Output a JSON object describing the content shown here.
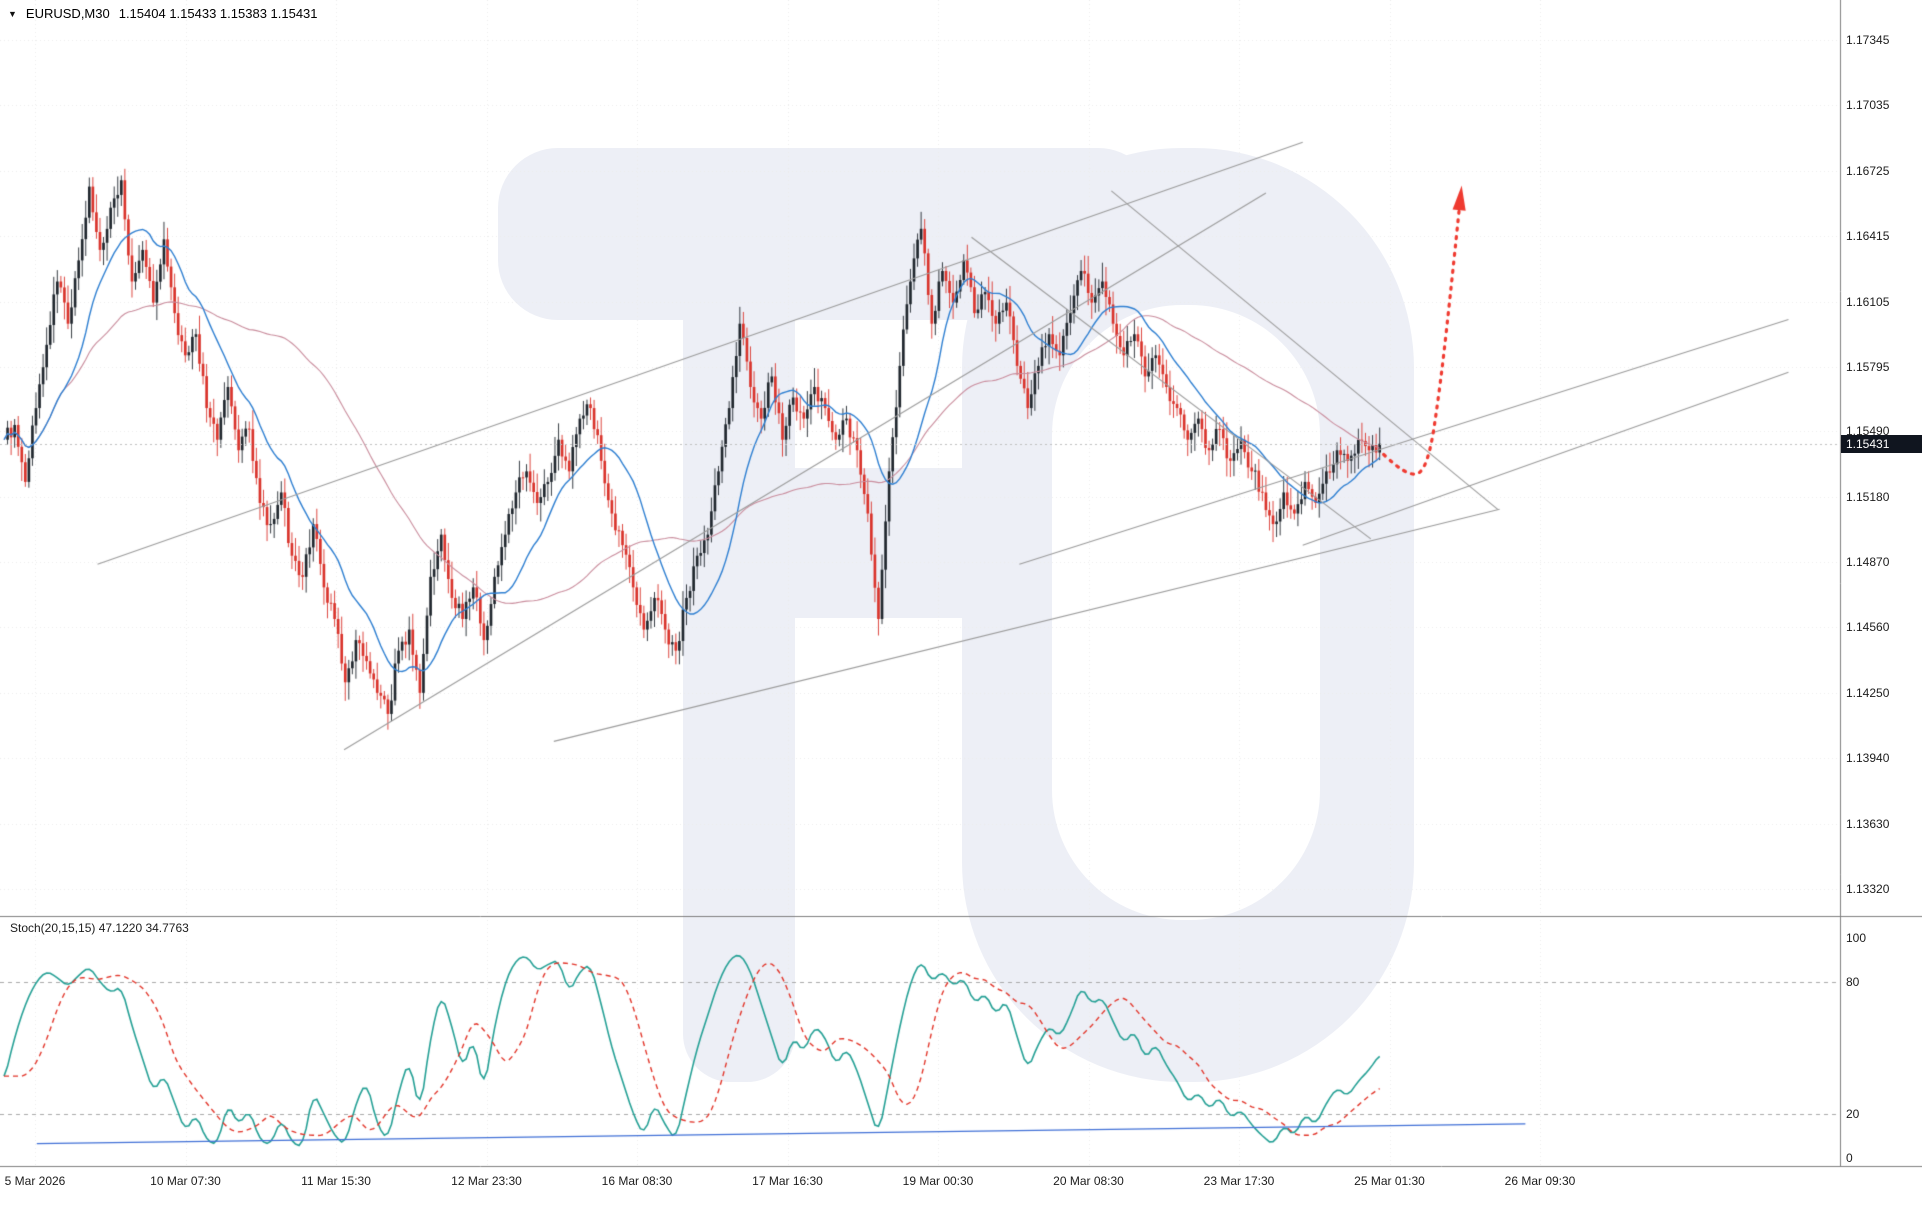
{
  "header": {
    "symbol": "EURUSD,M30",
    "ohlc": "1.15404 1.15433 1.15383 1.15431"
  },
  "current_price": {
    "value": "1.15431"
  },
  "price_axis": {
    "labels": [
      "1.17345",
      "1.17035",
      "1.16725",
      "1.16415",
      "1.16105",
      "1.15795",
      "1.15490",
      "1.15180",
      "1.14870",
      "1.14560",
      "1.14250",
      "1.13940",
      "1.13630",
      "1.13320"
    ]
  },
  "time_axis": {
    "labels": [
      "5 Mar 2026",
      "10 Mar 07:30",
      "11 Mar 15:30",
      "12 Mar 23:30",
      "16 Mar 08:30",
      "17 Mar 16:30",
      "19 Mar 00:30",
      "20 Mar 08:30",
      "23 Mar 17:30",
      "25 Mar 01:30",
      "26 Mar 09:30"
    ]
  },
  "stoch_panel": {
    "label": "Stoch(20,15,15)",
    "values": "47.1220 34.7763",
    "axis_labels": [
      "100",
      "80",
      "20",
      "0"
    ]
  },
  "colors": {
    "background": "#ffffff",
    "grid": "#ebebeb",
    "axis_text": "#1c1c1c",
    "badge_bg": "#10151f",
    "watermark": "#edeff6",
    "pane_border": "#7e7e7e"
  },
  "chart_data": [
    {
      "type": "candlestick",
      "title": "EURUSD,M30",
      "ylabel": "price",
      "ylim": [
        1.1332,
        1.17345
      ],
      "x_span_frac": 0.752,
      "wick_amp": 0.0007,
      "up_color": "#1f262d",
      "down_color": "#d9332b",
      "closes": [
        1.1545,
        1.1552,
        1.1525,
        1.156,
        1.159,
        1.162,
        1.16,
        1.163,
        1.1665,
        1.1635,
        1.1655,
        1.1668,
        1.162,
        1.1635,
        1.161,
        1.164,
        1.1605,
        1.1585,
        1.1595,
        1.156,
        1.1545,
        1.157,
        1.154,
        1.155,
        1.1515,
        1.1505,
        1.152,
        1.149,
        1.148,
        1.1505,
        1.1475,
        1.146,
        1.143,
        1.145,
        1.144,
        1.1425,
        1.1415,
        1.1445,
        1.1455,
        1.1425,
        1.148,
        1.15,
        1.147,
        1.146,
        1.1475,
        1.145,
        1.148,
        1.15,
        1.152,
        1.153,
        1.1515,
        1.1525,
        1.1545,
        1.153,
        1.1555,
        1.156,
        1.1535,
        1.151,
        1.1495,
        1.1475,
        1.1455,
        1.147,
        1.1455,
        1.1445,
        1.147,
        1.149,
        1.15,
        1.153,
        1.156,
        1.16,
        1.157,
        1.1555,
        1.1575,
        1.1545,
        1.1565,
        1.1555,
        1.157,
        1.156,
        1.1545,
        1.1555,
        1.154,
        1.151,
        1.146,
        1.153,
        1.158,
        1.162,
        1.1645,
        1.16,
        1.1625,
        1.161,
        1.163,
        1.1605,
        1.1615,
        1.16,
        1.161,
        1.158,
        1.156,
        1.158,
        1.1595,
        1.1585,
        1.1605,
        1.1625,
        1.161,
        1.162,
        1.16,
        1.1585,
        1.1595,
        1.1575,
        1.1585,
        1.157,
        1.156,
        1.1545,
        1.1555,
        1.154,
        1.155,
        1.1535,
        1.1545,
        1.153,
        1.152,
        1.1505,
        1.152,
        1.151,
        1.1525,
        1.1515,
        1.153,
        1.154,
        1.1535,
        1.1545,
        1.154,
        1.15431
      ],
      "ma_fast": {
        "period": 18,
        "color": "#2e7fd1"
      },
      "ma_slow": {
        "period": 70,
        "color": "#c98c9c"
      },
      "trendline_color": "#9b9b9b",
      "trendlines": [
        {
          "x1": 0.053,
          "p1": 1.1486,
          "x2": 0.708,
          "p2": 1.1686
        },
        {
          "x1": 0.187,
          "p1": 1.1398,
          "x2": 0.688,
          "p2": 1.1662
        },
        {
          "x1": 0.301,
          "p1": 1.1402,
          "x2": 0.815,
          "p2": 1.1512
        },
        {
          "x1": 0.528,
          "p1": 1.1641,
          "x2": 0.745,
          "p2": 1.1498
        },
        {
          "x1": 0.604,
          "p1": 1.1663,
          "x2": 0.814,
          "p2": 1.1512
        },
        {
          "x1": 0.554,
          "p1": 1.1486,
          "x2": 0.972,
          "p2": 1.1602
        },
        {
          "x1": 0.708,
          "p1": 1.1495,
          "x2": 0.972,
          "p2": 1.1577
        }
      ],
      "forecast_arrow": {
        "color": "#ef3a30",
        "points": [
          [
            0.752,
            1.1538
          ],
          [
            0.765,
            1.1527
          ],
          [
            0.776,
            1.1531
          ],
          [
            0.783,
            1.1572
          ],
          [
            0.789,
            1.162
          ],
          [
            0.7935,
            1.1658
          ]
        ]
      },
      "bid_line": {
        "price": 1.15431,
        "color": "#bfbfbf"
      }
    },
    {
      "type": "line",
      "title": "Stoch(20,15,15)",
      "ylim": [
        0,
        100
      ],
      "levels": [
        20,
        80
      ],
      "x_span_frac": 0.752,
      "main": {
        "name": "stochastic-main",
        "color": "#25a095",
        "values": [
          35,
          55,
          70,
          80,
          85,
          82,
          78,
          83,
          87,
          80,
          75,
          78,
          60,
          45,
          30,
          38,
          25,
          12,
          20,
          8,
          6,
          25,
          15,
          22,
          8,
          6,
          18,
          7,
          5,
          30,
          20,
          10,
          6,
          25,
          35,
          15,
          8,
          30,
          45,
          20,
          55,
          75,
          60,
          40,
          55,
          30,
          60,
          80,
          90,
          92,
          85,
          88,
          90,
          75,
          85,
          88,
          70,
          50,
          35,
          20,
          10,
          25,
          15,
          8,
          30,
          50,
          65,
          80,
          90,
          93,
          85,
          70,
          55,
          40,
          55,
          48,
          60,
          55,
          42,
          50,
          40,
          25,
          10,
          35,
          60,
          80,
          90,
          80,
          85,
          78,
          82,
          70,
          75,
          65,
          72,
          55,
          40,
          52,
          60,
          55,
          65,
          78,
          70,
          73,
          62,
          52,
          58,
          45,
          52,
          42,
          35,
          25,
          30,
          22,
          28,
          18,
          22,
          15,
          10,
          6,
          15,
          10,
          20,
          15,
          25,
          32,
          28,
          35,
          40,
          47
        ]
      },
      "signal": {
        "name": "stochastic-signal",
        "color": "#e2362b",
        "style": "dashed",
        "lag": 5
      },
      "support_line": {
        "x1": 0.02,
        "v1": 6.5,
        "x2": 0.829,
        "v2": 15.5,
        "color": "#3f6fd6"
      }
    }
  ]
}
